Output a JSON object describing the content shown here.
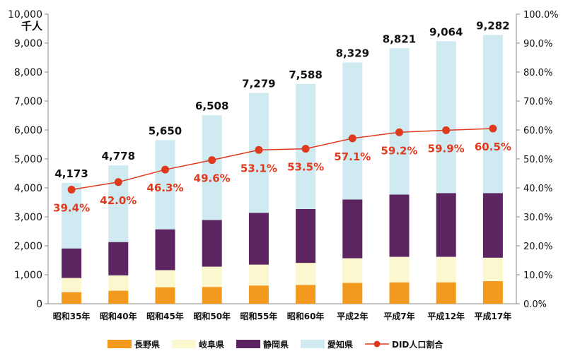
{
  "chart_data": {
    "type": "bar",
    "stacked": true,
    "unit_label": "千人",
    "categories": [
      "昭和35年",
      "昭和40年",
      "昭和45年",
      "昭和50年",
      "昭和55年",
      "昭和60年",
      "平成2年",
      "平成7年",
      "平成12年",
      "平成17年"
    ],
    "series": [
      {
        "name": "長野県",
        "color": "#f39a1e",
        "values": [
          400,
          450,
          570,
          580,
          630,
          650,
          720,
          740,
          740,
          780
        ]
      },
      {
        "name": "岐阜県",
        "color": "#fbf7cf",
        "values": [
          490,
          530,
          590,
          700,
          720,
          760,
          850,
          880,
          880,
          810
        ]
      },
      {
        "name": "静岡県",
        "color": "#5c2460",
        "values": [
          1020,
          1150,
          1410,
          1610,
          1790,
          1860,
          2030,
          2150,
          2200,
          2230
        ]
      },
      {
        "name": "愛知県",
        "color": "#cfeaf1",
        "values": [
          2263,
          2648,
          3080,
          3618,
          4139,
          4318,
          4729,
          5051,
          5244,
          5462
        ]
      }
    ],
    "totals": [
      4173,
      4778,
      5650,
      6508,
      7279,
      7588,
      8329,
      8821,
      9064,
      9282
    ],
    "total_labels": [
      "4,173",
      "4,778",
      "5,650",
      "6,508",
      "7,279",
      "7,588",
      "8,329",
      "8,821",
      "9,064",
      "9,282"
    ],
    "line_series": {
      "name": "DID人口割合",
      "color": "#e03a1e",
      "values": [
        39.4,
        42.0,
        46.3,
        49.6,
        53.1,
        53.5,
        57.1,
        59.2,
        59.9,
        60.5
      ],
      "labels": [
        "39.4%",
        "42.0%",
        "46.3%",
        "49.6%",
        "53.1%",
        "53.5%",
        "57.1%",
        "59.2%",
        "59.9%",
        "60.5%"
      ]
    },
    "y_left": {
      "min": 0,
      "max": 10000,
      "ticks": [
        "0",
        "1,000",
        "2,000",
        "3,000",
        "4,000",
        "5,000",
        "6,000",
        "7,000",
        "8,000",
        "9,000",
        "10,000"
      ]
    },
    "y_right": {
      "min": 0,
      "max": 100,
      "ticks": [
        "0.0%",
        "10.0%",
        "20.0%",
        "30.0%",
        "40.0%",
        "50.0%",
        "60.0%",
        "70.0%",
        "80.0%",
        "90.0%",
        "100.0%"
      ]
    },
    "grid": false,
    "legend_position": "bottom"
  }
}
